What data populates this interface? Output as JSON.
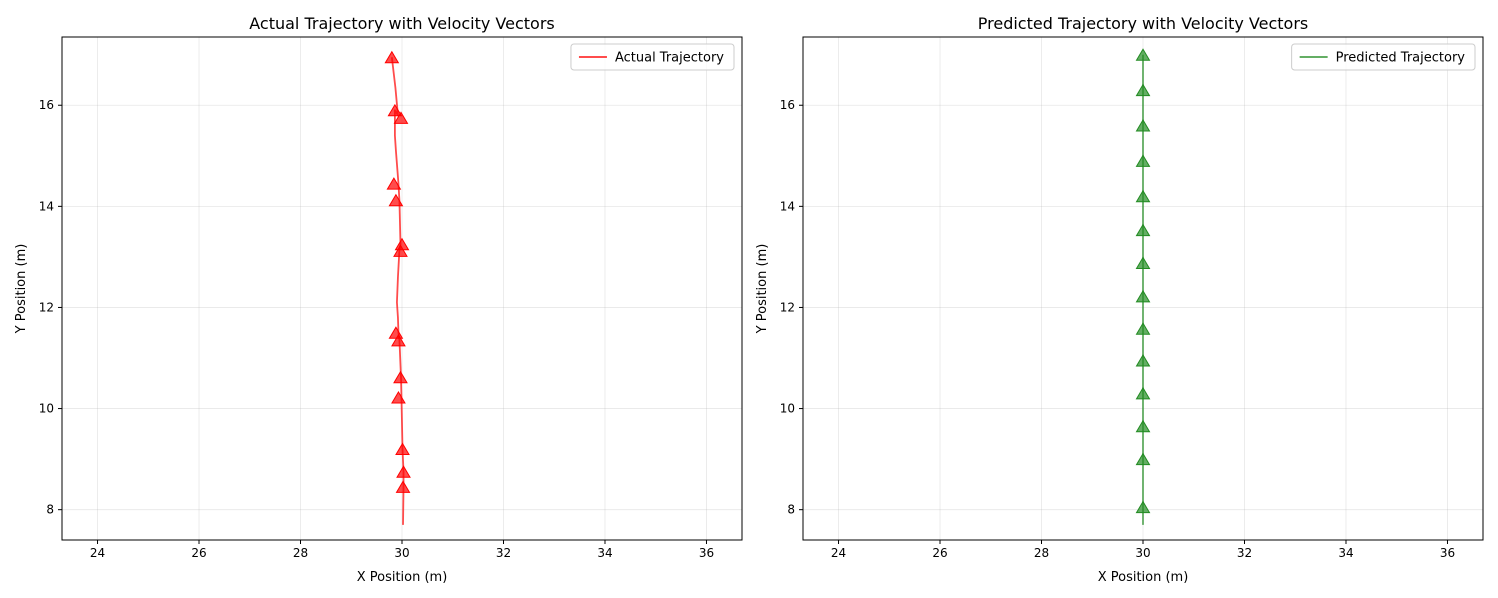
{
  "chart_data": [
    {
      "type": "line",
      "title": "Actual Trajectory with Velocity Vectors",
      "xlabel": "X Position (m)",
      "ylabel": "Y Position (m)",
      "xlim": [
        23.3,
        36.7
      ],
      "ylim": [
        7.4,
        17.35
      ],
      "xticks": [
        24,
        26,
        28,
        30,
        32,
        34,
        36
      ],
      "yticks": [
        8,
        10,
        12,
        14,
        16
      ],
      "grid": true,
      "legend_position": "upper right",
      "color": "#ff0000",
      "series": [
        {
          "name": "Actual Trajectory",
          "x": [
            30.02,
            30.03,
            30.03,
            30.01,
            29.99,
            29.98,
            29.95,
            29.93,
            29.92,
            29.9,
            29.92,
            29.95,
            29.97,
            29.95,
            29.93,
            29.88,
            29.86,
            29.86,
            29.86,
            29.92,
            29.87,
            29.8
          ],
          "y": [
            7.7,
            8.45,
            8.75,
            9.2,
            10.2,
            10.62,
            11.35,
            11.5,
            11.8,
            12.1,
            12.6,
            13.15,
            13.25,
            14.1,
            14.45,
            15.1,
            15.4,
            15.75,
            15.9,
            15.8,
            16.35,
            16.95
          ]
        }
      ],
      "markers": {
        "shape": "triangle-up",
        "points": [
          {
            "x": 30.02,
            "y": 8.45
          },
          {
            "x": 30.03,
            "y": 8.75
          },
          {
            "x": 30.01,
            "y": 9.2
          },
          {
            "x": 29.93,
            "y": 10.22
          },
          {
            "x": 29.97,
            "y": 10.62
          },
          {
            "x": 29.93,
            "y": 11.35
          },
          {
            "x": 29.88,
            "y": 11.5
          },
          {
            "x": 29.97,
            "y": 13.12
          },
          {
            "x": 30.0,
            "y": 13.25
          },
          {
            "x": 29.88,
            "y": 14.12
          },
          {
            "x": 29.84,
            "y": 14.45
          },
          {
            "x": 29.98,
            "y": 15.75
          },
          {
            "x": 29.86,
            "y": 15.9
          },
          {
            "x": 29.8,
            "y": 16.95
          }
        ]
      }
    },
    {
      "type": "line",
      "title": "Predicted Trajectory with Velocity Vectors",
      "xlabel": "X Position (m)",
      "ylabel": "Y Position (m)",
      "xlim": [
        23.3,
        36.7
      ],
      "ylim": [
        7.4,
        17.35
      ],
      "xticks": [
        24,
        26,
        28,
        30,
        32,
        34,
        36
      ],
      "yticks": [
        8,
        10,
        12,
        14,
        16
      ],
      "grid": true,
      "legend_position": "upper right",
      "color": "#228b22",
      "series": [
        {
          "name": "Predicted Trajectory",
          "x": [
            30.0,
            30.0,
            30.0,
            30.0,
            30.0,
            30.0,
            30.0,
            30.0,
            30.0,
            30.0,
            30.0,
            30.0,
            30.0,
            30.0,
            30.0
          ],
          "y": [
            7.7,
            8.05,
            9.0,
            9.65,
            10.3,
            10.95,
            11.58,
            12.22,
            12.88,
            13.53,
            14.2,
            14.9,
            15.6,
            16.3,
            17.0
          ]
        }
      ],
      "markers": {
        "shape": "triangle-up",
        "points": [
          {
            "x": 30.0,
            "y": 8.05
          },
          {
            "x": 30.0,
            "y": 9.0
          },
          {
            "x": 30.0,
            "y": 9.65
          },
          {
            "x": 30.0,
            "y": 10.3
          },
          {
            "x": 30.0,
            "y": 10.95
          },
          {
            "x": 30.0,
            "y": 11.58
          },
          {
            "x": 30.0,
            "y": 12.22
          },
          {
            "x": 30.0,
            "y": 12.88
          },
          {
            "x": 30.0,
            "y": 13.53
          },
          {
            "x": 30.0,
            "y": 14.2
          },
          {
            "x": 30.0,
            "y": 14.9
          },
          {
            "x": 30.0,
            "y": 15.6
          },
          {
            "x": 30.0,
            "y": 16.3
          },
          {
            "x": 30.0,
            "y": 17.0
          }
        ]
      }
    }
  ]
}
